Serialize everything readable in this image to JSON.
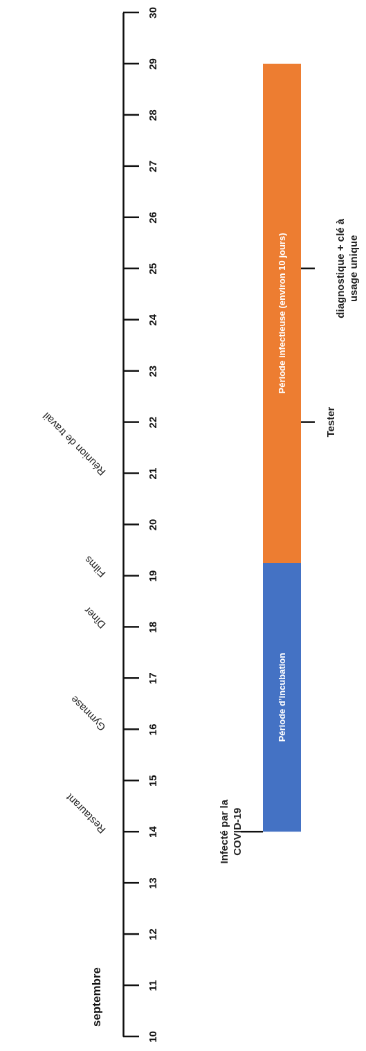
{
  "chart_data": {
    "type": "bar",
    "ylabel": "septembre",
    "categories": [
      null
    ],
    "series": [
      {
        "name": "Période d’incubation",
        "color": "#4472c4",
        "values": [
          5.25
        ],
        "base": [
          14
        ]
      },
      {
        "name": "Période infectieuse (environ 10 jours)",
        "color": "#ed7d31",
        "values": [
          9.75
        ],
        "base": [
          19.25
        ]
      }
    ],
    "ylim": [
      10,
      30
    ],
    "yticks": [
      10,
      11,
      12,
      13,
      14,
      15,
      16,
      17,
      18,
      19,
      20,
      21,
      22,
      23,
      24,
      25,
      26,
      27,
      28,
      29,
      30
    ],
    "annotations": [
      "Restaurant",
      "Gymnase",
      "Dîner",
      "Films",
      "Réunion de travail"
    ],
    "ref_lines": [
      {
        "axis": "y",
        "value": 14,
        "label": "Infecté par la\nCOVID-19"
      },
      {
        "axis": "y",
        "value": 22,
        "label": "Tester"
      },
      {
        "axis": "y",
        "value": 25,
        "label": "diagnostique + clé à\nusage unique"
      }
    ]
  }
}
